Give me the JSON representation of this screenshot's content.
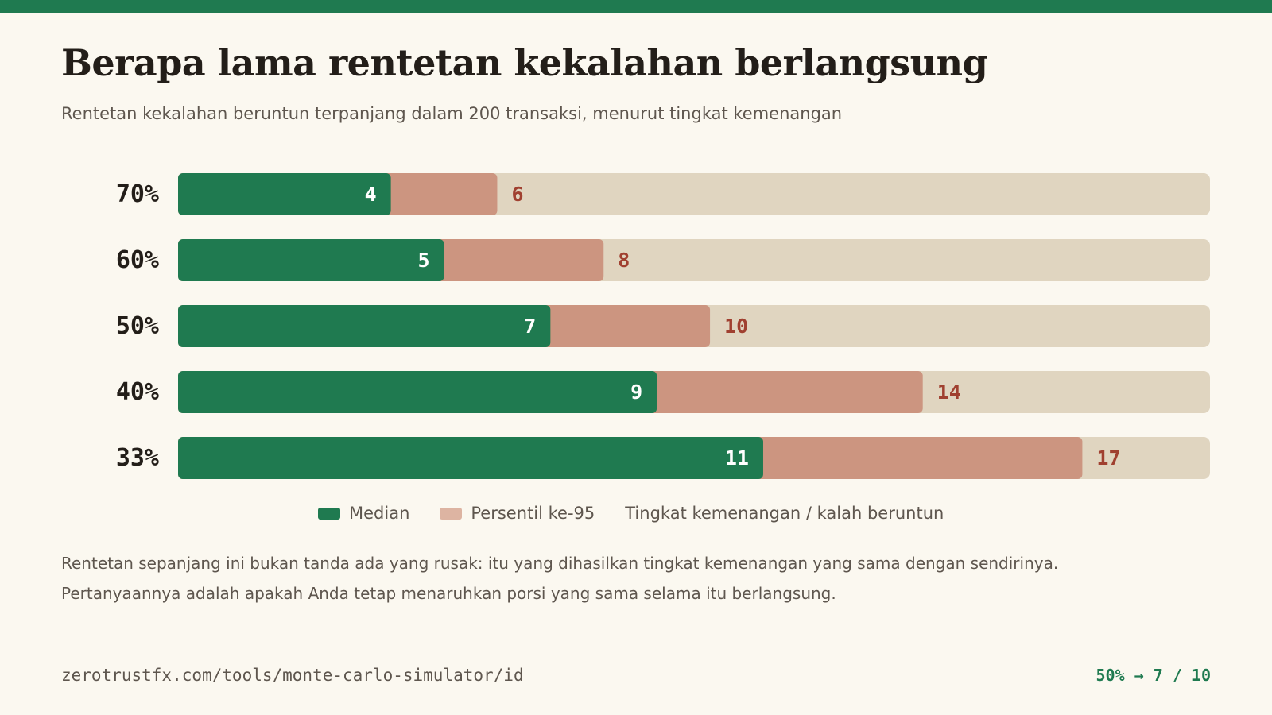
{
  "header": {
    "title": "Berapa lama rentetan kekalahan berlangsung",
    "subtitle": "Rentetan kekalahan beruntun terpanjang dalam 200 transaksi, menurut tingkat kemenangan"
  },
  "colors": {
    "accent": "#1f7a50",
    "median": "#1f7a50",
    "p95": "#cc9580",
    "p95_legend": "#ddb4a2",
    "track": "#e0d5c0",
    "p95_label": "#a04030",
    "category_label": "#231e19"
  },
  "chart_data": {
    "type": "bar",
    "orientation": "horizontal",
    "stacked_overlay": true,
    "categories": [
      "70%",
      "60%",
      "50%",
      "40%",
      "33%"
    ],
    "series": [
      {
        "name": "Median",
        "values": [
          4,
          5,
          7,
          9,
          11
        ]
      },
      {
        "name": "Persentil ke-95",
        "values": [
          6,
          8,
          10,
          14,
          17
        ]
      }
    ],
    "xlim": [
      0,
      19.4
    ],
    "grid": false,
    "legend_position": "bottom-center"
  },
  "legend": {
    "median_label": "Median",
    "p95_label": "Persentil ke-95",
    "axis_caption": "Tingkat kemenangan / kalah beruntun"
  },
  "note": {
    "line1": "Rentetan sepanjang ini bukan tanda ada yang rusak: itu yang dihasilkan tingkat kemenangan yang sama dengan sendirinya.",
    "line2": "Pertanyaannya adalah apakah Anda tetap menaruhkan porsi yang sama selama itu berlangsung."
  },
  "footer": {
    "url": "zerotrustfx.com/tools/monte-carlo-simulator/id",
    "badge": "50% → 7 / 10"
  }
}
